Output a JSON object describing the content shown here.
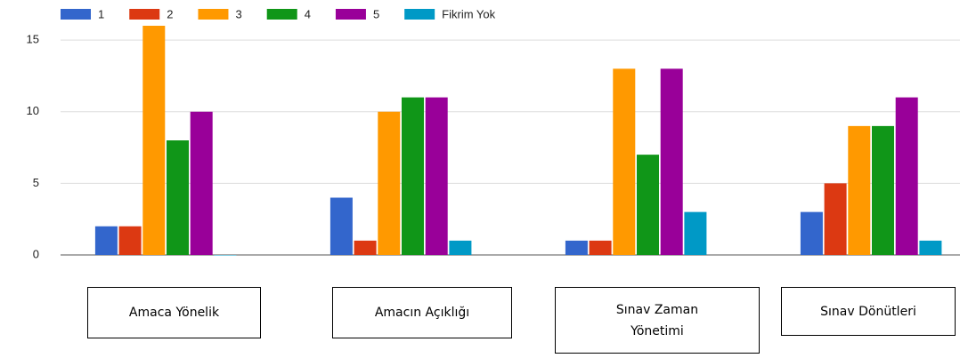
{
  "chart_data": {
    "type": "bar",
    "categories": [
      "Amaca Yönelik",
      "Amacın Açıklığı",
      "Sınav Zaman Yönetimi",
      "Sınav Dönütleri"
    ],
    "series": [
      {
        "name": "1",
        "color": "#3366cc",
        "values": [
          2,
          4,
          1,
          3
        ]
      },
      {
        "name": "2",
        "color": "#dc3912",
        "values": [
          2,
          1,
          1,
          5
        ]
      },
      {
        "name": "3",
        "color": "#ff9900",
        "values": [
          16,
          10,
          13,
          9
        ]
      },
      {
        "name": "4",
        "color": "#109618",
        "values": [
          8,
          11,
          7,
          9
        ]
      },
      {
        "name": "5",
        "color": "#990099",
        "values": [
          10,
          11,
          13,
          11
        ]
      },
      {
        "name": "Fikrim Yok",
        "color": "#0099c6",
        "values": [
          0,
          1,
          3,
          1
        ]
      }
    ],
    "ylim": [
      0,
      16
    ],
    "yticks": [
      0,
      5,
      10,
      15
    ],
    "grid": true,
    "legend": "top"
  }
}
